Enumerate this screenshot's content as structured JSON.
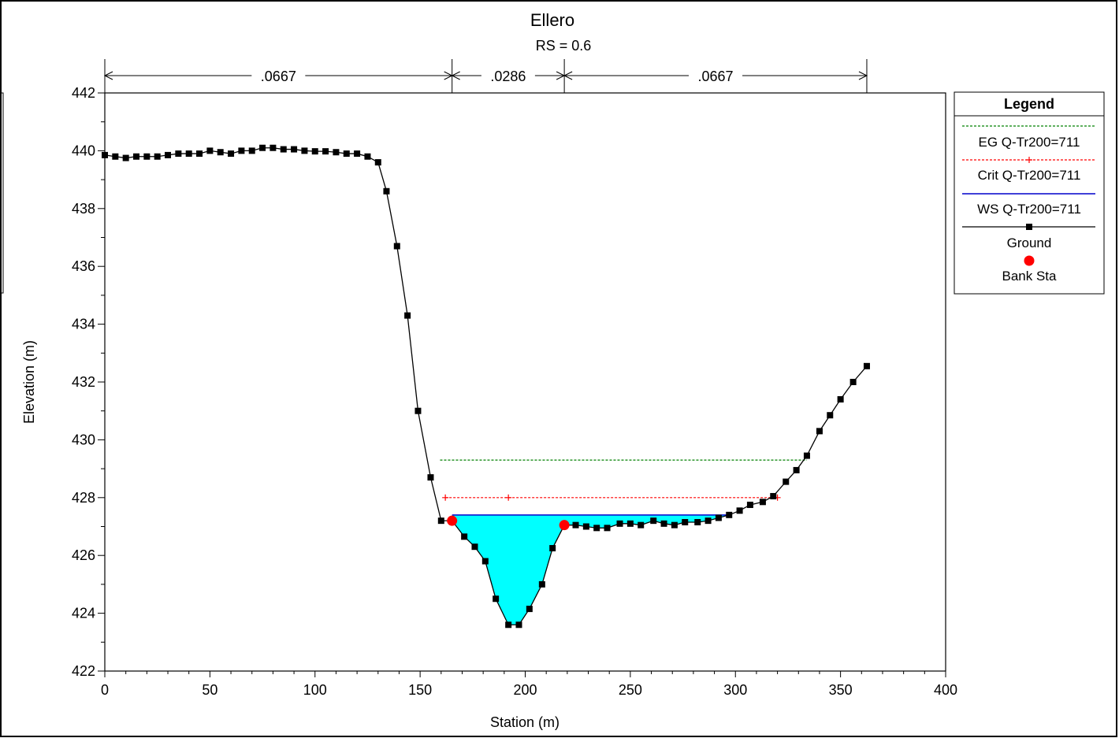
{
  "chart_data": {
    "type": "line",
    "title": "Ellero",
    "subtitle": "RS = 0.6",
    "xlabel": "Station (m)",
    "ylabel": "Elevation (m)",
    "xlim": [
      0,
      400
    ],
    "ylim": [
      422,
      442
    ],
    "xticks": [
      "0",
      "50",
      "100",
      "150",
      "200",
      "250",
      "300",
      "350",
      "400"
    ],
    "yticks": [
      "422",
      "424",
      "426",
      "428",
      "430",
      "432",
      "434",
      "436",
      "438",
      "440",
      "442"
    ],
    "grid": false,
    "legend_position": "right",
    "legend_title": "Legend",
    "mannings": [
      {
        "label": ".0667",
        "x_start": 0,
        "x_end": 165.2
      },
      {
        "label": ".0286",
        "x_start": 165.2,
        "x_end": 218.6
      },
      {
        "label": ".0667",
        "x_start": 218.6,
        "x_end": 362.5
      }
    ],
    "series": [
      {
        "name": "EG Q-Tr200=711",
        "color": "#008000",
        "style": "dashed",
        "y": 429.3,
        "x_range": [
          159.5,
          334.0
        ]
      },
      {
        "name": "Crit Q-Tr200=711",
        "color": "#ff0000",
        "style": "dashed-plus",
        "y": 428.0,
        "x_range": [
          162.0,
          320.0
        ],
        "marker_x": [
          162.0,
          192.0,
          320.0
        ]
      },
      {
        "name": "WS Q-Tr200=711",
        "color": "#0000cc",
        "style": "solid",
        "y": 427.4,
        "x_range": [
          165.2,
          296.0
        ],
        "fill": "#00ffff"
      },
      {
        "name": "Ground",
        "color": "#000000",
        "style": "solid-square",
        "x": [
          0,
          5,
          10,
          15,
          20,
          25,
          30,
          35,
          40,
          45,
          50,
          55,
          60,
          65,
          70,
          75,
          80,
          85,
          90,
          95,
          100,
          105,
          110,
          115,
          120,
          125,
          130,
          134,
          139,
          144,
          149,
          155,
          160,
          165.2,
          171,
          176,
          181,
          186,
          192,
          197,
          202,
          208,
          213,
          218.6,
          224,
          229,
          234,
          239,
          245,
          250,
          255,
          261,
          266,
          271,
          276,
          282,
          287,
          292,
          297,
          302,
          307,
          313,
          318,
          324,
          329,
          334,
          340,
          345,
          350,
          356,
          362.5
        ],
        "y": [
          439.85,
          439.8,
          439.75,
          439.8,
          439.8,
          439.8,
          439.85,
          439.9,
          439.9,
          439.9,
          440.0,
          439.95,
          439.9,
          440.0,
          440.0,
          440.1,
          440.1,
          440.05,
          440.05,
          440.0,
          439.98,
          439.98,
          439.95,
          439.9,
          439.9,
          439.8,
          439.6,
          438.6,
          436.7,
          434.3,
          431.0,
          428.7,
          427.2,
          427.2,
          426.65,
          426.3,
          425.8,
          424.5,
          423.6,
          423.6,
          424.15,
          425.0,
          426.25,
          427.05,
          427.05,
          427.0,
          426.95,
          426.95,
          427.1,
          427.1,
          427.05,
          427.2,
          427.1,
          427.05,
          427.15,
          427.15,
          427.2,
          427.3,
          427.4,
          427.55,
          427.75,
          427.85,
          428.05,
          428.55,
          428.95,
          429.45,
          430.3,
          430.85,
          431.4,
          432.0,
          432.55
        ]
      },
      {
        "name": "Bank Sta",
        "color": "#ff0000",
        "style": "marker-circle",
        "x": [
          165.2,
          218.6
        ],
        "y": [
          427.2,
          427.05
        ]
      }
    ]
  }
}
